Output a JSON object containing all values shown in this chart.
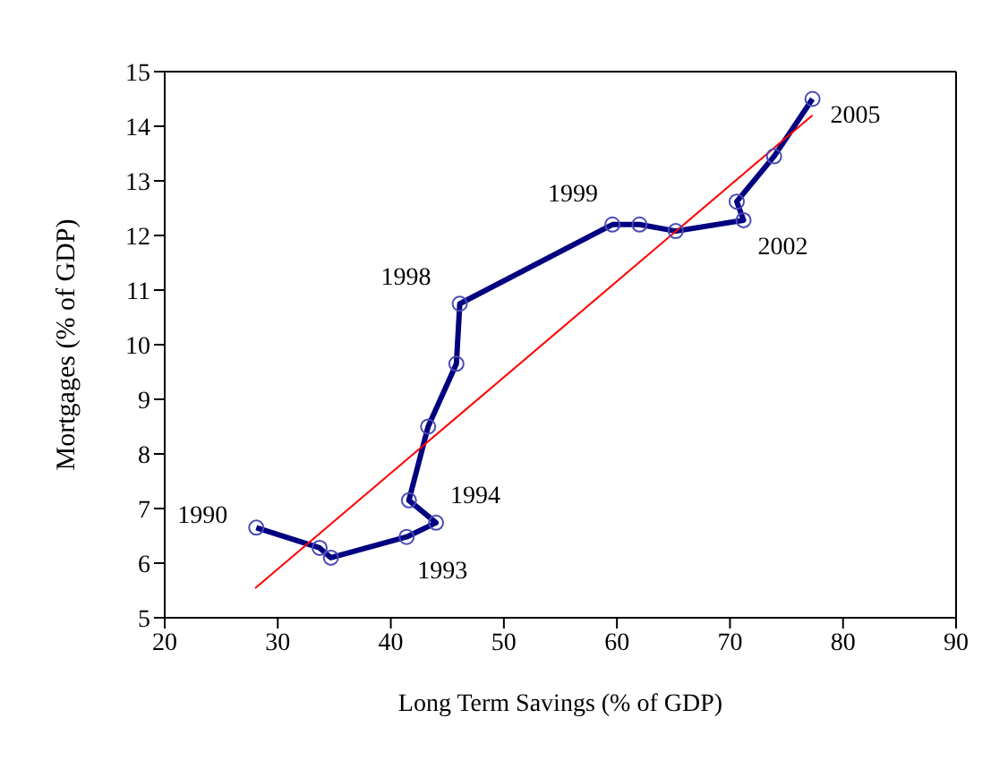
{
  "chart_data": {
    "type": "line",
    "xlabel": "Long Term Savings (% of GDP)",
    "ylabel": "Mortgages (% of GDP)",
    "xlim": [
      20,
      90
    ],
    "xticks": [
      20,
      30,
      40,
      50,
      60,
      70,
      80,
      90
    ],
    "ylim": [
      5,
      15
    ],
    "yticks": [
      5,
      6,
      7,
      8,
      9,
      10,
      11,
      12,
      13,
      14,
      15
    ],
    "grid": false,
    "line_style": "solid",
    "series": [
      {
        "color": "#000080",
        "marker": "circle",
        "x": [
          28.1,
          33.7,
          34.7,
          41.4,
          44.0,
          41.6,
          43.3,
          45.8,
          46.1,
          59.6,
          62.0,
          65.2,
          71.2,
          70.6,
          73.9,
          77.3
        ],
        "values": [
          6.65,
          6.28,
          6.1,
          6.48,
          6.74,
          7.15,
          8.5,
          9.65,
          10.75,
          12.2,
          12.2,
          12.08,
          12.28,
          12.62,
          13.45,
          14.5
        ]
      },
      {
        "color": "#ff0000",
        "marker": "none",
        "x": [
          28,
          77.3
        ],
        "values": [
          5.54,
          14.2
        ]
      }
    ],
    "annotations": [
      {
        "text": "1990",
        "x": 28.1,
        "y": 6.65
      },
      {
        "text": "1993",
        "x": 41.4,
        "y": 6.48
      },
      {
        "text": "1994",
        "x": 44.0,
        "y": 6.74
      },
      {
        "text": "1998",
        "x": 46.1,
        "y": 10.75
      },
      {
        "text": "1999",
        "x": 59.6,
        "y": 12.2
      },
      {
        "text": "2002",
        "x": 71.2,
        "y": 12.28
      },
      {
        "text": "2005",
        "x": 77.3,
        "y": 14.5
      }
    ]
  }
}
